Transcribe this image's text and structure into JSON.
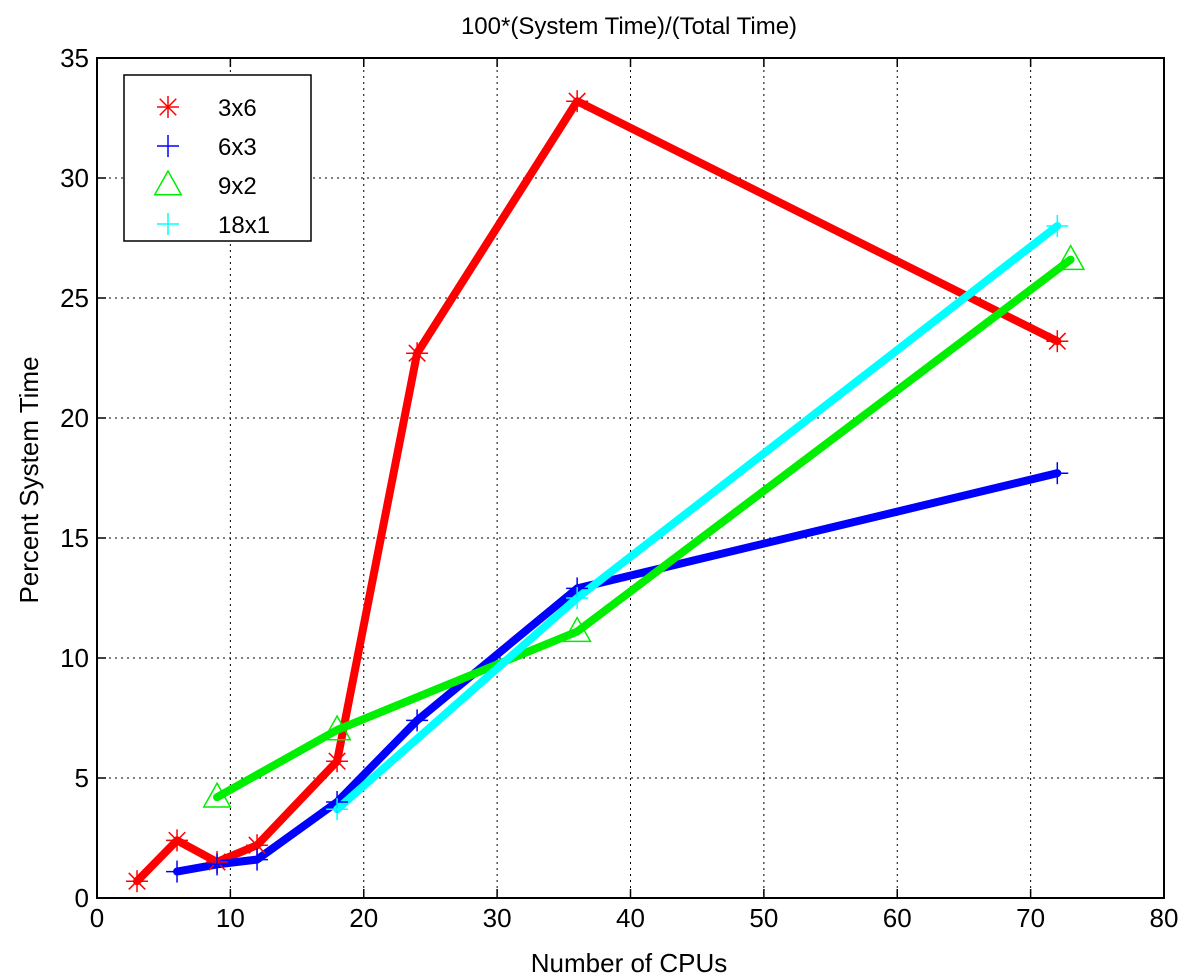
{
  "chart_data": {
    "type": "line",
    "title": "100*(System Time)/(Total Time)",
    "xlabel": "Number of CPUs",
    "ylabel": "Percent System Time",
    "xlim": [
      0,
      80
    ],
    "ylim": [
      0,
      35
    ],
    "xticks": [
      "0",
      "10",
      "20",
      "30",
      "40",
      "50",
      "60",
      "70",
      "80"
    ],
    "yticks": [
      "0",
      "5",
      "10",
      "15",
      "20",
      "25",
      "30",
      "35"
    ],
    "grid": true,
    "legend_position": "top-left",
    "series": [
      {
        "name": "3x6",
        "color": "#ff0000",
        "marker": "asterisk",
        "x": [
          3,
          6,
          9,
          12,
          18,
          24,
          36,
          72
        ],
        "y": [
          0.7,
          2.4,
          1.5,
          2.2,
          5.7,
          22.7,
          33.2,
          23.2
        ]
      },
      {
        "name": "6x3",
        "color": "#0000ff",
        "marker": "plus",
        "x": [
          6,
          9,
          12,
          18,
          24,
          36,
          72
        ],
        "y": [
          1.1,
          1.4,
          1.6,
          4.0,
          7.4,
          12.9,
          17.7
        ]
      },
      {
        "name": "9x2",
        "color": "#00ee00",
        "marker": "triangle",
        "x": [
          9,
          18,
          36,
          73
        ],
        "y": [
          4.2,
          7.0,
          11.1,
          26.6
        ]
      },
      {
        "name": "18x1",
        "color": "#00ffff",
        "marker": "plus",
        "x": [
          18,
          36,
          72
        ],
        "y": [
          3.7,
          12.5,
          28.0
        ]
      }
    ]
  }
}
